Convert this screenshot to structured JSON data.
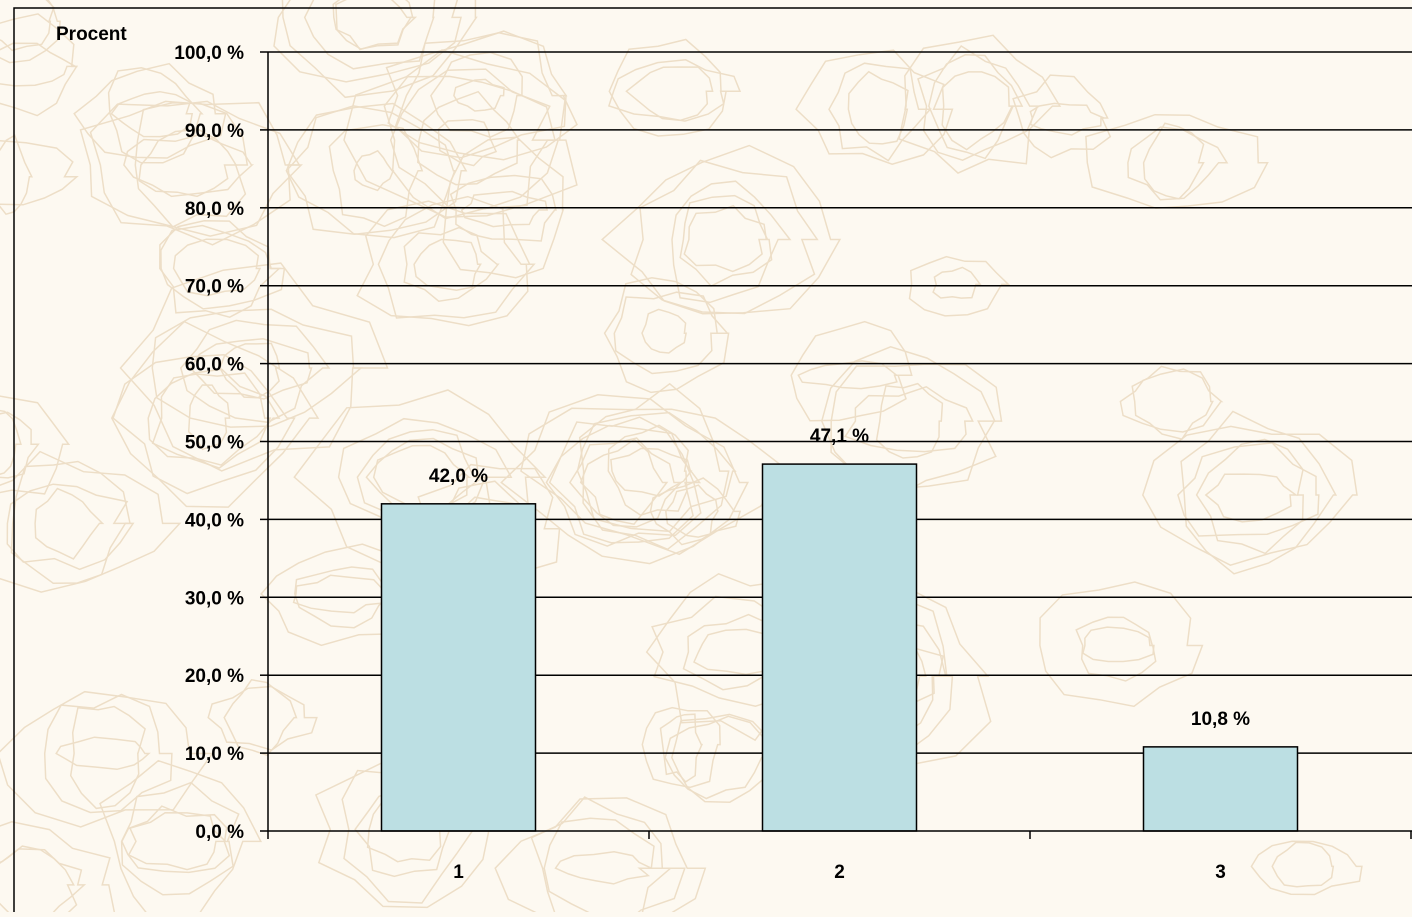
{
  "colors": {
    "background": "#fdf9f1",
    "contour": "#ecdcc3",
    "bar_fill": "#bcdfe3",
    "bar_stroke": "#000000",
    "grid": "#000000"
  },
  "chart_data": {
    "type": "bar",
    "ylabel": "Procent",
    "categories": [
      "1",
      "2",
      "3"
    ],
    "values": [
      42.0,
      47.1,
      10.8
    ],
    "data_labels": [
      "42,0 %",
      "47,1 %",
      "10,8 %"
    ],
    "ylim": [
      0,
      100
    ],
    "y_ticks": [
      {
        "value": 0,
        "label": "0,0 %"
      },
      {
        "value": 10,
        "label": "10,0 %"
      },
      {
        "value": 20,
        "label": "20,0 %"
      },
      {
        "value": 30,
        "label": "30,0 %"
      },
      {
        "value": 40,
        "label": "40,0 %"
      },
      {
        "value": 50,
        "label": "50,0 %"
      },
      {
        "value": 60,
        "label": "60,0 %"
      },
      {
        "value": 70,
        "label": "70,0 %"
      },
      {
        "value": 80,
        "label": "80,0 %"
      },
      {
        "value": 90,
        "label": "90,0 %"
      },
      {
        "value": 100,
        "label": "100,0 %"
      }
    ],
    "grid": true,
    "legend": "none"
  }
}
